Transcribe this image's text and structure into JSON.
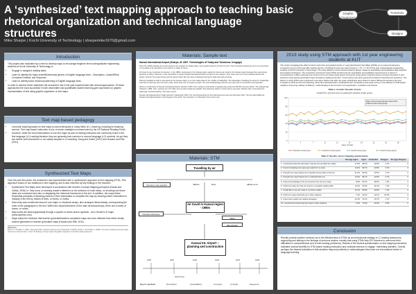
{
  "title": "A ‘synthesized’ text mapping approach to teaching basic rhetorical organization and technical language structures",
  "author_line": "Mike Sharpe | Kochi University of Technology | sharpemike1670@gmail.com",
  "logo": {
    "nodes": [
      "Graphic Organizers",
      "Functions",
      "Designs"
    ]
  },
  "introduction": {
    "heading": "Introduction",
    "p1": "This project was motivated by a need to develop ways to encourage beginner level undergraduate engineering students at Kochi University of Technology to",
    "bullets": [
      "Engage in assigned reading tasks",
      "Learn to identify the basic scientific/technical genres in English language texts – Description, Cause/Effect, Compare/Contrast, and Sequence",
      "Learn to identify basic rhetorical patterning in English language texts"
    ],
    "p2": "In order to achieve these objectives the researcher has in the past experimented with several approaches. Of these approaches the most successful in both observable and quantifiable student learning gain was based on graphic representation of text using graphic organizers or text maps."
  },
  "text_map": {
    "heading": "Text map based pedagogy",
    "bullets": [
      "Currently, teaching based on text maps is used extensively in many fields of L1 learning, including for teaching science. Text map based instruction is one of seven strategies recommended by the US National Reading Panel.",
      "However, while the recommendations to use text maps as part of reading instruction are commonly found in the first language (L1) reading literature they are generally less common in second language (L2) contexts. As yet they are neither well-researched or nor widely adopted in L2 teaching. Jiang and Grabe (2007) and Howard and Ellis (2011)"
    ]
  },
  "stm": {
    "heading": "Synthesized Text Maps",
    "p1": "Over the past few years, the researcher has experimented with a ‘synthesized’ approach to text mapping (STM). This approach draws on two traditions in text mapping, and is also informed by key findings in the research.",
    "bullets": [
      "Synthesized Text Maps were developed in accordance with Novak’s Concept Mapping principles (Novak and Cañas, 2006) i.e. they focus on drawing reader’s attention on the selection of main ideas, on showing how these ideas are connected and also on displaying the rhetorical framework of the text. In addition, the maps follow Mosenthal principles of allowing readers to fill-in information to complete the map by showing where information is missing in the text by means of lines, or boxes, or nodes.",
      "Each map was constructed around ‘sub-maps’ or structural arrays, also arranged hierarchically, corresponding the order of the paragraphs in the text. Within the visual framework of the main structural arrays, there are a series of boxes, or nodes.",
      "Map nodes are linked graphically through a system of words and/or symbols - as in Hunter’s iS maps (www.iaonline.com).",
      "Maps follow the evidence that teacher generated/student completed maps are more effective than either wholly student generated or teacher generated maps (Howard and Ellis, 2011)."
    ],
    "refs_label": "References",
    "refs": "Bruner, H. and Ellis, A. (2011). Jiang and Grabe. Sample references text. Mosenthal, P. (2006). Novak, J. and Cañas, A. (2006). The theory underlying concept maps and how to construct them. Lehrer, W. Bolinger concept maps and graphic organizers in the ESL reading classroom."
  },
  "sample": {
    "heading": "Materials: Sample text",
    "title": "Kansai International Airport (Sharpe, M. 2007. Technologies of Today and Tomorrow, Cengage)",
    "paragraphs": [
      "Since the 1930s traveling by air has become very popular. At Osaka today, more people travel by air than by train. This is because traveling by air is so convenient. It is possible to fly anywhere in the world in a matter of hours.",
      "Air travel is very important to business. In the 1980s, businesses in the Kansai region wanted to improve air travel in the Kansai region because they were losing business to Tokyo. However, it was impossible to expand Osaka International Airport at Itami for two reasons. First, there were too many buildings around the airport. Second, the people living near the airport didn’t like the noise of airplanes during the night and early morning.",
      "Planners decided to build a new island for the Kansai region on a man-made island in the middle of Osaka Bay. The advantage of building the airport in Osaka Bay was that it could stay open 24 hours a day. Since there are no houses at night. The main disadvantage was the very high cost of construction and operation.",
      "Work on construction of Kansai International Airport started in 1987. First, workers constructed a seawall using rocks and 48,000 concrete blocks. The seawall was finished in 1989. Then, workers put 170 million tons of earth inside the seawall. This raised the island 4 meters above sea level. Workers then constructed the passenger terminal building. This took 3 years.",
      "Kansai International Airport finally opened in September 1994. The new Kansai airport is four kilometers long and one kilometer wide. The terminal building at Kansai International Airport is the longest in the world. The terminal is 1.7 kilometers from end to end."
    ]
  },
  "materials_stm": {
    "heading": "Materials: STM",
    "node_travel": "Travelling by air",
    "node_fast": "has been very popular",
    "node_before": "Before",
    "node_now": "Now",
    "node_allows": "allows us to",
    "node_air_travel": "Air travel in Kansai region - 1980s",
    "node_kansai_businesses": "Kansai businesses",
    "node_tokyo": "Tokyo",
    "node_itami": "Itami Airport",
    "node_kix": "Kansai Int. Airport – planning and construction",
    "years": [
      "1987",
      "1987",
      "1990",
      "1994",
      "1997",
      "1999"
    ],
    "node_staff": "Itself airing",
    "key_label": "Key to symbols",
    "key_items": [
      "Description",
      "Cause/Effect",
      "Compare",
      "Contrast",
      "Sequence"
    ]
  },
  "study": {
    "heading": "2013 study using STM approach with 1st year engineering students at KUT",
    "p1": "This study investigated the effect of direct instruction and guided practice in using Synthesized Text Maps (STMs) on an experimental and a comparison group of first year EFL reading learners. Participants were two intact groups (n = 57, n = 57) of first year undergraduate engineering students at Kochi University of Technology. The study utilized a mixed method research design, based on quantitative and qualitative data collection and analysis techniques. The researcher examined if using STMs transformed into quantitative and qualitative improvements in learner’s comprehension of ESL expository text at the end of a ten week study period. During the study period, treatment group received instruction in and practiced using teacher-generated maps throughout reading instruction. Control group was given general text-based comprehension questions. The effects of using STMs were examined in two ways. Before and after the study, participants were asked to read a 300-word expository text and complete an STM as their text-following, literal and inferential tasks. Participants also completed a post-study survey on the efficacy of STM-based reading in improving reading confidence, understanding of text structure and organization, motivation and interest.",
    "table1_caption": "Table 1: Growth / Results of tests",
    "table1_sub": "Growth Pre- and post-test non-parametric analysis of gain scores",
    "chart_note": "Figure: Pre-test and post-test scores of the treatment and control groups",
    "table2_caption": "Table 2: Results of post mapping questionnaire",
    "table2_headers": [
      "",
      "Strongly Agree",
      "Agree",
      "Undecided",
      "Disagree",
      "Strongly Disagree"
    ],
    "table2_rows": [
      [
        "1. I understood what the information map the text provided the reader.",
        "17.5%",
        "68.4%",
        "10.5%",
        "3.7%",
        "0"
      ],
      [
        "2. I found completing text maps was useful for my study.",
        "14.0%",
        "59.7%",
        "22.8%",
        "3.7%",
        "0"
      ],
      [
        "3. I thought text maps helped me to identify the key ideas in the text.",
        "21.0%",
        "66.6%",
        "10.5%",
        "1.7%",
        "0"
      ],
      [
        "4. I thought text maps helped me to understand the text.",
        "14.0%",
        "59.7%",
        "22.8%",
        "3.7%",
        "0"
      ],
      [
        "5. I have the knowledge of the text structure from the text maps.",
        "8.8%",
        "56.1%",
        "28.0%",
        "7.0%",
        "0"
      ],
      [
        "6. I think text maps can help me improve my English reading skills.",
        "14.0%",
        "52.6%",
        "26.4%",
        "7.0%",
        "0"
      ],
      [
        "7. I would like to use text maps in my future studies.",
        "12.3%",
        "50.8%",
        "29.8%",
        "7.0%",
        "0"
      ],
      [
        "8. I think text maps could help me in other subjects.",
        "7.0%",
        "40.3%",
        "42.1%",
        "10.5%",
        "0"
      ],
      [
        "9. I have learnt useful new reading strategies.",
        "12.3%",
        "70.1%",
        "15.7%",
        "1.7%",
        "0"
      ],
      [
        "10. I would recommend using text maps to other students.",
        "5.2%",
        "71.9%",
        "19.2%",
        "3.5%",
        "0"
      ]
    ]
  },
  "conclusion": {
    "heading": "Conclusion",
    "text": "Results provide positive evidence as to the effectiveness of STMs as an instructional strategy in L2 reading classrooms, supporting and adding to the findings of previous studies, namely that using STMs help EFL learners to overcome their difficulties in comprehension and is both reading proficiency. Results of the student questionnaire on text mapping instruction indicated several benefits for STM-based reading instruction and motivate learners to engage. Interesting activities. Overall, perhaps the clearest indication is that students respond positively to methodologies they have not encountered before in language learning."
  },
  "chart_data": {
    "type": "line",
    "title": "",
    "xlabel": "Case number",
    "ylabel": "",
    "x": [
      1,
      2,
      3,
      4,
      5,
      6,
      7,
      8,
      9,
      10,
      11,
      12,
      13,
      14,
      15,
      16,
      17,
      18,
      19,
      20,
      21,
      22,
      23,
      24,
      25,
      26,
      27,
      28,
      29,
      30
    ],
    "ylim": [
      0,
      100
    ],
    "series": [
      {
        "name": "Treatment Group (pre)",
        "color": "#e05050",
        "values": [
          40,
          42,
          38,
          45,
          41,
          44,
          39,
          43,
          46,
          40,
          42,
          44,
          41,
          45,
          43,
          40,
          42,
          46,
          44,
          41,
          43,
          45,
          40,
          42,
          44,
          41,
          43,
          45,
          42,
          44
        ]
      },
      {
        "name": "Treatment Group (post)",
        "color": "#d0a030",
        "values": [
          60,
          64,
          58,
          66,
          62,
          68,
          61,
          65,
          70,
          63,
          66,
          69,
          62,
          67,
          65,
          61,
          64,
          70,
          68,
          63,
          66,
          69,
          62,
          65,
          67,
          63,
          66,
          69,
          64,
          68
        ]
      },
      {
        "name": "Control Group (pre)",
        "color": "#50a0e0",
        "values": [
          38,
          40,
          36,
          42,
          39,
          41,
          37,
          40,
          43,
          38,
          40,
          42,
          39,
          42,
          41,
          38,
          40,
          43,
          41,
          39,
          41,
          43,
          38,
          40,
          42,
          39,
          41,
          43,
          40,
          42
        ]
      },
      {
        "name": "Control Group (post)",
        "color": "#60b060",
        "values": [
          45,
          47,
          43,
          49,
          46,
          48,
          44,
          47,
          50,
          45,
          47,
          49,
          46,
          49,
          48,
          45,
          47,
          50,
          48,
          46,
          48,
          50,
          45,
          47,
          49,
          46,
          48,
          50,
          47,
          49
        ]
      }
    ]
  }
}
